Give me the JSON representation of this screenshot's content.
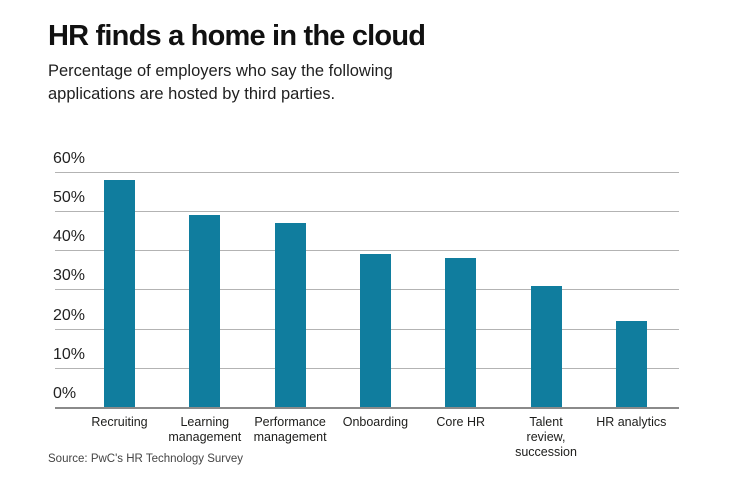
{
  "chart_data": {
    "type": "bar",
    "title": "HR finds a home in the cloud",
    "subtitle": "Percentage of employers who say the following\napplications are hosted by third parties.",
    "source": "Source: PwC's HR Technology Survey",
    "categories": [
      "Recruiting",
      "Learning\nmanagement",
      "Performance\nmanagement",
      "Onboarding",
      "Core HR",
      "Talent\nreview,\nsuccession",
      "HR analytics"
    ],
    "values": [
      58,
      49,
      47,
      39,
      38,
      31,
      22
    ],
    "xlabel": "",
    "ylabel": "",
    "ylim": [
      0,
      60
    ],
    "yticks": [
      "60%",
      "50%",
      "40%",
      "30%",
      "20%",
      "10%",
      "0%"
    ],
    "ytick_values": [
      60,
      50,
      40,
      30,
      20,
      10,
      0
    ],
    "grid": true,
    "legend": false,
    "bar_color": "#107d9e",
    "gridline_color": "#b3b3b3",
    "axis_color": "#8a8a8a",
    "text_color": "#1d1d1b"
  }
}
